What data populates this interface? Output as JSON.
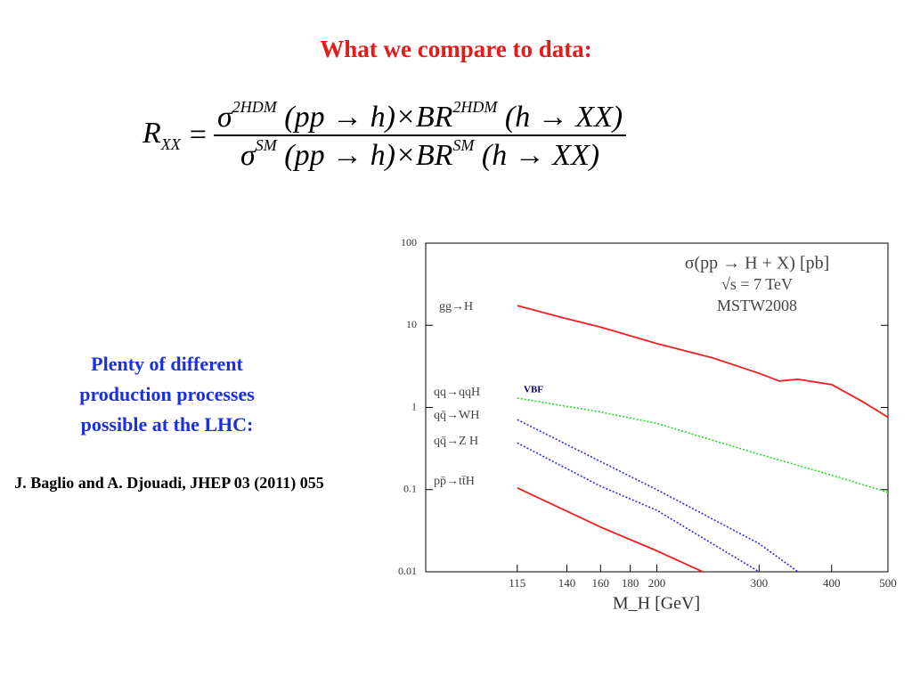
{
  "slide": {
    "title": "What we compare to data:",
    "formula": {
      "lhs": "R",
      "lhs_sub": "XX",
      "equals": "=",
      "num": [
        "σ",
        "2HDM",
        "(pp → h)×BR",
        "2HDM",
        "(h → XX)"
      ],
      "den": [
        "σ",
        "SM",
        "(pp → h)×BR",
        "SM",
        "(h → XX)"
      ]
    },
    "note": "Plenty of different production processes possible at the LHC:",
    "reference": "J. Baglio and A. Djouadi, JHEP 03 (2011) 055"
  },
  "chart_data": {
    "type": "line",
    "annotations": [
      "σ(pp → H + X) [pb]",
      "√s = 7 TeV",
      "MSTW2008",
      "VBF"
    ],
    "x_label": "M_H [GeV]",
    "xscale": "log",
    "yscale": "log",
    "xlim": [
      80,
      500
    ],
    "ylim": [
      0.01,
      100
    ],
    "xticks": [
      115,
      140,
      160,
      180,
      200,
      300,
      400,
      500
    ],
    "yticks": [
      0.01,
      0.1,
      1,
      10,
      100
    ],
    "series": [
      {
        "name": "gg→H",
        "color": "#f02020",
        "line_style": "solid",
        "x": [
          115,
          140,
          160,
          200,
          250,
          300,
          325,
          350,
          400,
          450,
          500
        ],
        "values": [
          17.4,
          12,
          9.5,
          6,
          4,
          2.6,
          2.1,
          2.2,
          1.9,
          1.2,
          0.76
        ]
      },
      {
        "name": "qq→qqH",
        "color": "#22dd22",
        "line_style": "dotted",
        "x": [
          115,
          160,
          200,
          300,
          400,
          500
        ],
        "values": [
          1.3,
          0.88,
          0.64,
          0.27,
          0.15,
          0.093
        ]
      },
      {
        "name": "qq̄→WH",
        "color": "#2a2aee",
        "line_style": "dotted",
        "x": [
          115,
          160,
          200,
          300,
          350
        ],
        "values": [
          0.71,
          0.22,
          0.1,
          0.022,
          0.01
        ]
      },
      {
        "name": "qq̄→Z H",
        "color": "#2a2aee",
        "line_style": "dotted",
        "x": [
          115,
          160,
          200,
          300
        ],
        "values": [
          0.37,
          0.11,
          0.056,
          0.01
        ]
      },
      {
        "name": "pp̄→tt̄H",
        "color": "#f02020",
        "line_style": "solid",
        "x": [
          115,
          160,
          200,
          240
        ],
        "values": [
          0.105,
          0.035,
          0.018,
          0.01
        ]
      }
    ]
  }
}
